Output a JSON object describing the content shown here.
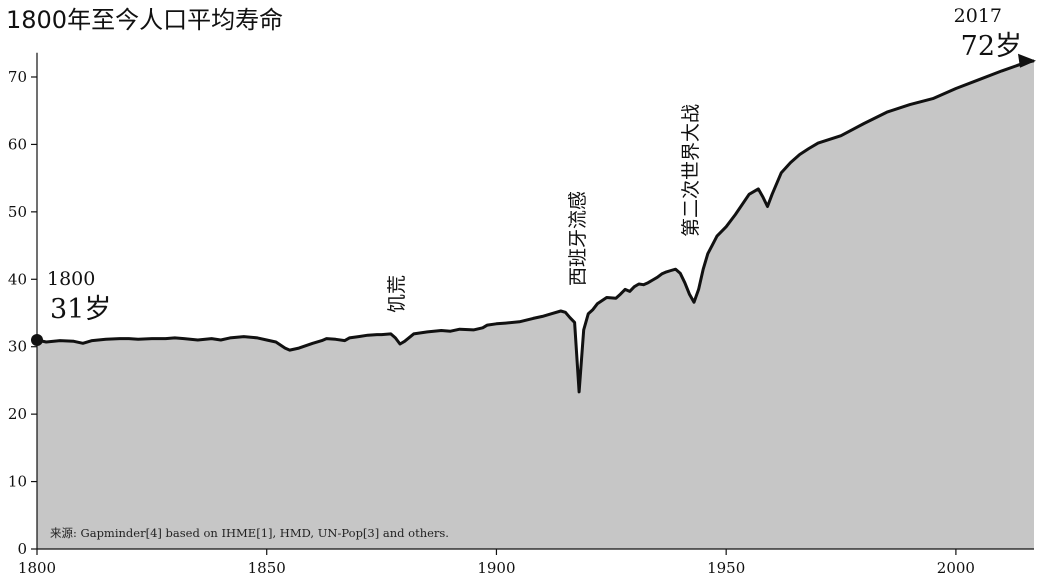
{
  "chart_data": {
    "type": "area",
    "title": "1800年至今人口平均寿命",
    "xlabel": "",
    "ylabel": "",
    "xlim": [
      1800,
      2017
    ],
    "ylim": [
      0,
      73
    ],
    "x_ticks": [
      1800,
      1850,
      1900,
      1950,
      2000
    ],
    "y_ticks": [
      0,
      10,
      20,
      30,
      40,
      50,
      60,
      70
    ],
    "grid": false,
    "colors": {
      "fill": "#c6c6c6",
      "line": "#111111"
    },
    "series": [
      {
        "x": [
          1800,
          1802,
          1805,
          1808,
          1810,
          1812,
          1815,
          1818,
          1820,
          1822,
          1825,
          1828,
          1830,
          1832,
          1835,
          1838,
          1840,
          1842,
          1845,
          1848,
          1850,
          1852,
          1854,
          1855,
          1857,
          1860,
          1862,
          1863,
          1865,
          1867,
          1868,
          1870,
          1872,
          1874,
          1875,
          1877,
          1878,
          1879,
          1880,
          1882,
          1885,
          1888,
          1890,
          1892,
          1895,
          1897,
          1898,
          1900,
          1902,
          1905,
          1908,
          1910,
          1912,
          1914,
          1915,
          1916,
          1917,
          1918,
          1919,
          1920,
          1921,
          1922,
          1924,
          1926,
          1927,
          1928,
          1929,
          1930,
          1931,
          1932,
          1933,
          1934,
          1935,
          1936,
          1937,
          1938,
          1939,
          1940,
          1941,
          1942,
          1943,
          1944,
          1945,
          1946,
          1947,
          1948,
          1950,
          1952,
          1955,
          1957,
          1958,
          1959,
          1960,
          1962,
          1964,
          1966,
          1968,
          1970,
          1975,
          1980,
          1985,
          1990,
          1995,
          2000,
          2005,
          2010,
          2015,
          2017
        ],
        "y": [
          31,
          30.7,
          30.9,
          30.8,
          30.5,
          30.9,
          31.1,
          31.2,
          31.2,
          31.1,
          31.2,
          31.2,
          31.3,
          31.2,
          31,
          31.2,
          31,
          31.3,
          31.5,
          31.3,
          31,
          30.7,
          29.8,
          29.5,
          29.8,
          30.5,
          30.9,
          31.2,
          31.1,
          30.9,
          31.3,
          31.5,
          31.7,
          31.8,
          31.8,
          31.9,
          31.3,
          30.4,
          30.8,
          31.9,
          32.2,
          32.4,
          32.3,
          32.6,
          32.5,
          32.8,
          33.2,
          33.4,
          33.5,
          33.7,
          34.2,
          34.5,
          34.9,
          35.3,
          35.1,
          34.3,
          33.6,
          23.3,
          32.5,
          34.9,
          35.5,
          36.4,
          37.3,
          37.2,
          37.8,
          38.5,
          38.2,
          38.9,
          39.3,
          39.2,
          39.5,
          39.9,
          40.3,
          40.8,
          41.1,
          41.3,
          41.5,
          40.9,
          39.5,
          37.8,
          36.6,
          38.5,
          41.5,
          43.8,
          45.1,
          46.4,
          47.8,
          49.6,
          52.6,
          53.4,
          52.2,
          50.8,
          52.6,
          55.8,
          57.3,
          58.5,
          59.4,
          60.2,
          61.3,
          63.1,
          64.8,
          65.9,
          66.8,
          68.3,
          69.6,
          70.9,
          72.1,
          72.4
        ]
      }
    ],
    "annotations": [
      {
        "year": "1800",
        "value": "31岁",
        "x": 1800,
        "y": 31
      },
      {
        "year": "2017",
        "value": "72岁",
        "x": 2017,
        "y": 72.4
      },
      {
        "label": "饥荒",
        "x": 1878,
        "y": 30.4
      },
      {
        "label": "西班牙流感",
        "x": 1918,
        "y": 35
      },
      {
        "label": "第二次世界大战",
        "x": 1943,
        "y": 41.5
      }
    ],
    "source": "来源: Gapminder[4] based on IHME[1], HMD, UN-Pop[3] and others."
  }
}
